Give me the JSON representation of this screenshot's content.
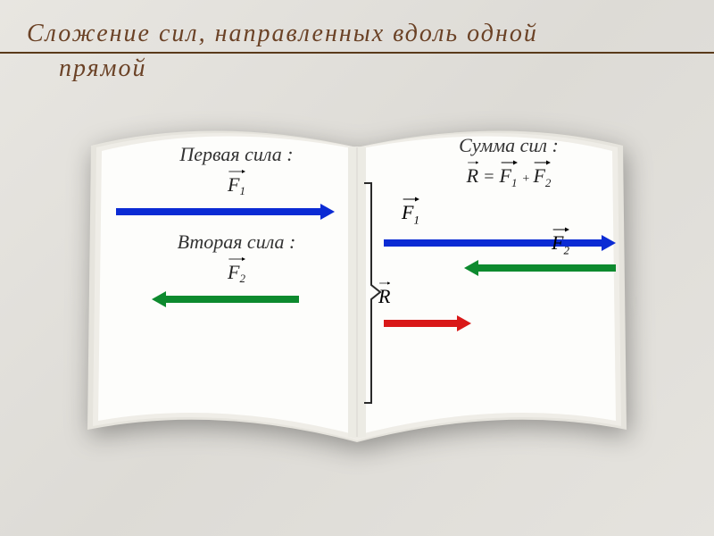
{
  "title": {
    "line1": "Сложение  сил, направленных  вдоль  одной",
    "line2": "прямой",
    "color": "#6b4226",
    "fontsize": 28
  },
  "left_page": {
    "label1": "Первая сила :",
    "force1": {
      "symbol": "F",
      "subscript": "1",
      "color": "#0b2bd4",
      "direction": "right",
      "length": 245,
      "thickness": 8
    },
    "label2": "Вторая сила :",
    "force2": {
      "symbol": "F",
      "subscript": "2",
      "color": "#0d8a2e",
      "direction": "left",
      "length": 165,
      "thickness": 8
    }
  },
  "right_page": {
    "label": "Сумма сил :",
    "formula": {
      "R": "R",
      "eq": " = ",
      "F1": "F",
      "sub1": "1",
      "plus": " + ",
      "F2": "F",
      "sub2": "2"
    },
    "forces": {
      "f1": {
        "symbol": "F",
        "subscript": "1",
        "color": "#0b2bd4",
        "direction": "right",
        "length": 260,
        "thickness": 8,
        "x": 0
      },
      "f2": {
        "symbol": "F",
        "subscript": "2",
        "color": "#0d8a2e",
        "direction": "left",
        "length": 170,
        "thickness": 8,
        "x": 90
      },
      "r": {
        "symbol": "R",
        "subscript": "",
        "color": "#d91818",
        "direction": "right",
        "length": 98,
        "thickness": 8,
        "x": 0
      }
    }
  },
  "book": {
    "page_color": "#fdfdfb",
    "shadow_color": "#c9c7c0",
    "spine_shadow": "#d8d6cf"
  }
}
